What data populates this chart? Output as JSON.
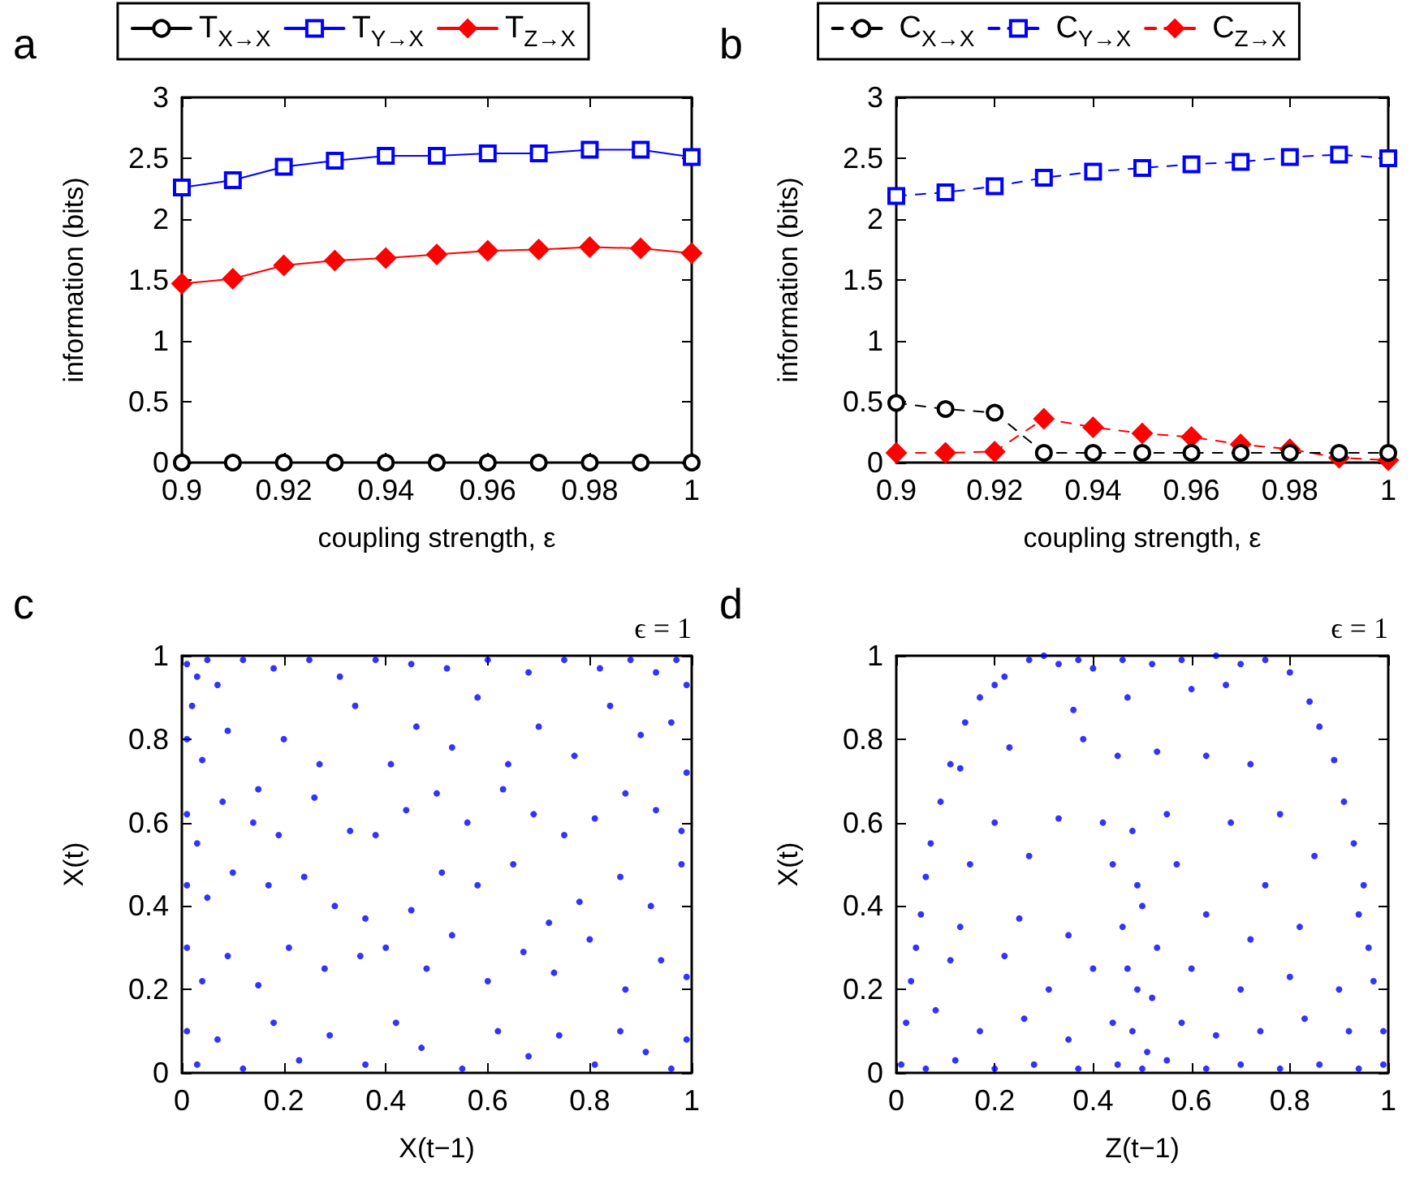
{
  "chart_data": [
    {
      "type": "line",
      "annotations": [
        "a"
      ],
      "xlabel": "coupling strength, ε",
      "ylabel": "information (bits)",
      "legend": "top",
      "line_style": "solid",
      "x": [
        0.9,
        0.91,
        0.92,
        0.93,
        0.94,
        0.95,
        0.96,
        0.97,
        0.98,
        0.99,
        1
      ],
      "xlim": [
        0.9,
        1
      ],
      "xticks": [
        0.9,
        0.92,
        0.94,
        0.96,
        0.98,
        1
      ],
      "ylim": [
        0,
        3
      ],
      "yticks": [
        0,
        0.5,
        1,
        1.5,
        2,
        2.5,
        3
      ],
      "series": [
        {
          "name": "T$_{X→X}$",
          "color": "#000000",
          "marker": "circle",
          "values": [
            0,
            0,
            0,
            0,
            0,
            0,
            0,
            0,
            0,
            0,
            0
          ]
        },
        {
          "name": "T$_{Y→X}$",
          "color": "#0000ff",
          "marker": "square",
          "values": [
            2.26,
            2.32,
            2.43,
            2.48,
            2.52,
            2.52,
            2.54,
            2.54,
            2.57,
            2.57,
            2.51
          ]
        },
        {
          "name": "T$_{Z→X}$",
          "color": "#ff0000",
          "marker": "diamond",
          "values": [
            1.47,
            1.51,
            1.62,
            1.66,
            1.68,
            1.71,
            1.74,
            1.75,
            1.77,
            1.76,
            1.72
          ]
        }
      ]
    },
    {
      "type": "line",
      "annotations": [
        "b"
      ],
      "xlabel": "coupling strength, ε",
      "ylabel": "information (bits)",
      "legend": "top",
      "line_style": "dashed",
      "x": [
        0.9,
        0.91,
        0.92,
        0.93,
        0.94,
        0.95,
        0.96,
        0.97,
        0.98,
        0.99,
        1
      ],
      "xlim": [
        0.9,
        1
      ],
      "xticks": [
        0.9,
        0.92,
        0.94,
        0.96,
        0.98,
        1
      ],
      "ylim": [
        0,
        3
      ],
      "yticks": [
        0,
        0.5,
        1,
        1.5,
        2,
        2.5,
        3
      ],
      "series": [
        {
          "name": "C$_{X→X}$",
          "color": "#000000",
          "marker": "circle",
          "values": [
            0.49,
            0.44,
            0.41,
            0.08,
            0.08,
            0.08,
            0.08,
            0.08,
            0.08,
            0.08,
            0.08
          ]
        },
        {
          "name": "C$_{Y→X}$",
          "color": "#0000ff",
          "marker": "square",
          "values": [
            2.19,
            2.22,
            2.27,
            2.34,
            2.39,
            2.42,
            2.45,
            2.47,
            2.51,
            2.53,
            2.5
          ]
        },
        {
          "name": "C$_{Z→X}$",
          "color": "#ff0000",
          "marker": "diamond",
          "values": [
            0.08,
            0.08,
            0.09,
            0.36,
            0.29,
            0.24,
            0.21,
            0.15,
            0.11,
            0.04,
            0.02
          ]
        }
      ]
    },
    {
      "type": "scatter",
      "annotations": [
        "c",
        "ϵ = 1"
      ],
      "xlabel": "X(t−1)",
      "ylabel": "X(t)",
      "legend": false,
      "marker": "circle",
      "xlim": [
        0,
        1
      ],
      "xticks": [
        0,
        0.2,
        0.4,
        0.6,
        0.8,
        1
      ],
      "ylim": [
        0,
        1
      ],
      "yticks": [
        0,
        0.2,
        0.4,
        0.6,
        0.8,
        1
      ],
      "series": [
        {
          "color": "#0000ff",
          "x": [
            0.01,
            0.03,
            0.05,
            0.02,
            0.07,
            0.12,
            0.18,
            0.25,
            0.31,
            0.38,
            0.45,
            0.52,
            0.6,
            0.68,
            0.75,
            0.82,
            0.88,
            0.93,
            0.97,
            0.99,
            0.01,
            0.04,
            0.09,
            0.15,
            0.2,
            0.27,
            0.34,
            0.41,
            0.46,
            0.53,
            0.58,
            0.64,
            0.7,
            0.77,
            0.84,
            0.9,
            0.96,
            0.99,
            0.01,
            0.03,
            0.08,
            0.14,
            0.19,
            0.26,
            0.33,
            0.38,
            0.44,
            0.5,
            0.56,
            0.63,
            0.69,
            0.75,
            0.81,
            0.87,
            0.93,
            0.98,
            0.01,
            0.05,
            0.1,
            0.17,
            0.24,
            0.3,
            0.36,
            0.45,
            0.51,
            0.58,
            0.65,
            0.72,
            0.78,
            0.86,
            0.92,
            0.98,
            0.01,
            0.04,
            0.09,
            0.15,
            0.21,
            0.28,
            0.35,
            0.4,
            0.48,
            0.53,
            0.6,
            0.67,
            0.73,
            0.8,
            0.87,
            0.94,
            0.99,
            0.01,
            0.03,
            0.07,
            0.12,
            0.18,
            0.23,
            0.29,
            0.36,
            0.42,
            0.47,
            0.55,
            0.62,
            0.68,
            0.74,
            0.81,
            0.86,
            0.91,
            0.96,
            0.99
          ],
          "values": [
            0.98,
            0.95,
            0.99,
            0.88,
            0.93,
            0.99,
            0.97,
            0.99,
            0.95,
            0.99,
            0.98,
            0.97,
            0.99,
            0.96,
            0.99,
            0.97,
            0.99,
            0.96,
            0.99,
            0.93,
            0.8,
            0.75,
            0.82,
            0.68,
            0.8,
            0.74,
            0.88,
            0.74,
            0.83,
            0.78,
            0.9,
            0.74,
            0.83,
            0.76,
            0.88,
            0.81,
            0.84,
            0.72,
            0.62,
            0.55,
            0.65,
            0.6,
            0.57,
            0.66,
            0.58,
            0.57,
            0.63,
            0.67,
            0.6,
            0.68,
            0.62,
            0.57,
            0.61,
            0.67,
            0.63,
            0.58,
            0.45,
            0.42,
            0.48,
            0.45,
            0.47,
            0.4,
            0.37,
            0.39,
            0.48,
            0.45,
            0.5,
            0.36,
            0.41,
            0.47,
            0.4,
            0.5,
            0.3,
            0.22,
            0.28,
            0.21,
            0.3,
            0.25,
            0.28,
            0.3,
            0.25,
            0.33,
            0.22,
            0.29,
            0.24,
            0.32,
            0.2,
            0.27,
            0.23,
            0.1,
            0.02,
            0.08,
            0.01,
            0.12,
            0.03,
            0.09,
            0.02,
            0.12,
            0.06,
            0.01,
            0.1,
            0.04,
            0.09,
            0.02,
            0.1,
            0.05,
            0.01,
            0.08
          ]
        }
      ]
    },
    {
      "type": "scatter",
      "annotations": [
        "d",
        "ϵ = 1"
      ],
      "xlabel": "Z(t−1)",
      "ylabel": "X(t)",
      "legend": false,
      "marker": "circle",
      "xlim": [
        0,
        1
      ],
      "xticks": [
        0,
        0.2,
        0.4,
        0.6,
        0.8,
        1
      ],
      "ylim": [
        0,
        1
      ],
      "yticks": [
        0,
        0.2,
        0.4,
        0.6,
        0.8,
        1
      ],
      "series": [
        {
          "color": "#0000ff",
          "x": [
            0.27,
            0.3,
            0.33,
            0.37,
            0.4,
            0.46,
            0.52,
            0.58,
            0.65,
            0.7,
            0.75,
            0.22,
            0.8,
            0.17,
            0.2,
            0.36,
            0.47,
            0.6,
            0.67,
            0.84,
            0.14,
            0.86,
            0.11,
            0.13,
            0.23,
            0.38,
            0.45,
            0.53,
            0.63,
            0.72,
            0.89,
            0.09,
            0.91,
            0.07,
            0.2,
            0.33,
            0.42,
            0.48,
            0.55,
            0.68,
            0.78,
            0.93,
            0.06,
            0.15,
            0.27,
            0.44,
            0.49,
            0.57,
            0.75,
            0.85,
            0.95,
            0.05,
            0.13,
            0.25,
            0.35,
            0.46,
            0.5,
            0.53,
            0.63,
            0.72,
            0.82,
            0.94,
            0.04,
            0.96,
            0.03,
            0.11,
            0.22,
            0.31,
            0.4,
            0.47,
            0.49,
            0.52,
            0.6,
            0.7,
            0.8,
            0.9,
            0.97,
            0.02,
            0.08,
            0.17,
            0.26,
            0.35,
            0.44,
            0.48,
            0.51,
            0.58,
            0.65,
            0.74,
            0.83,
            0.92,
            0.99,
            0.01,
            0.06,
            0.12,
            0.2,
            0.28,
            0.37,
            0.45,
            0.5,
            0.55,
            0.63,
            0.7,
            0.78,
            0.86,
            0.94,
            0.99
          ],
          "values": [
            0.99,
            1,
            0.98,
            0.99,
            0.97,
            0.99,
            0.98,
            0.99,
            1,
            0.98,
            0.99,
            0.95,
            0.96,
            0.9,
            0.93,
            0.87,
            0.9,
            0.92,
            0.93,
            0.89,
            0.84,
            0.83,
            0.74,
            0.73,
            0.78,
            0.8,
            0.76,
            0.77,
            0.76,
            0.74,
            0.75,
            0.65,
            0.65,
            0.55,
            0.6,
            0.61,
            0.6,
            0.58,
            0.62,
            0.6,
            0.62,
            0.55,
            0.47,
            0.5,
            0.52,
            0.5,
            0.45,
            0.5,
            0.45,
            0.52,
            0.45,
            0.38,
            0.35,
            0.37,
            0.33,
            0.35,
            0.4,
            0.3,
            0.38,
            0.32,
            0.35,
            0.38,
            0.3,
            0.3,
            0.22,
            0.27,
            0.28,
            0.2,
            0.25,
            0.25,
            0.2,
            0.18,
            0.25,
            0.2,
            0.23,
            0.2,
            0.22,
            0.12,
            0.15,
            0.1,
            0.13,
            0.08,
            0.12,
            0.1,
            0.05,
            0.12,
            0.09,
            0.1,
            0.13,
            0.1,
            0.1,
            0.02,
            0.01,
            0.03,
            0.01,
            0.02,
            0.01,
            0.02,
            0.01,
            0.03,
            0.01,
            0.02,
            0.01,
            0.02,
            0.01,
            0.02
          ]
        }
      ]
    }
  ]
}
